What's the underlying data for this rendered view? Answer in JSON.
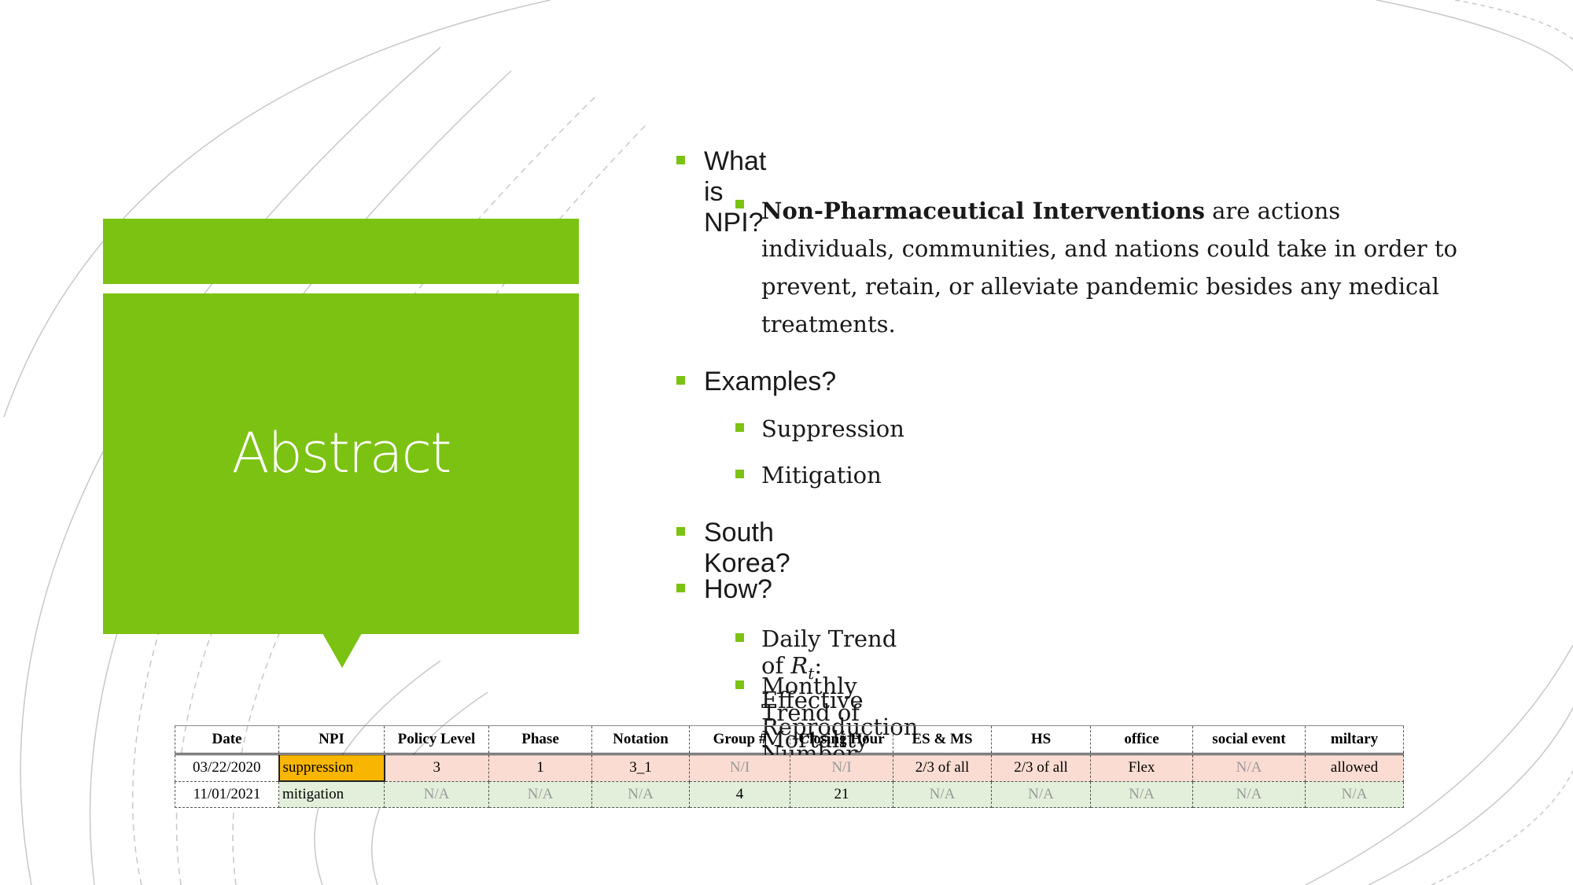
{
  "slide": {
    "title": "Abstract",
    "accent_color": "#7cc212"
  },
  "bullets": {
    "q1": "What is NPI?",
    "q1_def_bold": "Non-Pharmaceutical Interventions",
    "q1_def_rest": " are actions individuals, communities, and nations could take in order to prevent, retain, or alleviate pandemic besides any medical treatments.",
    "q2": "Examples?",
    "q2_items": [
      "Suppression",
      "Mitigation"
    ],
    "q3": "South Korea?",
    "q4": "How?",
    "q4_item1_prefix": "Daily Trend of ",
    "q4_item1_math_base": "R",
    "q4_item1_math_sub": "t",
    "q4_item1_suffix": ": Effective Reproduction Number",
    "q4_item2": "Monthly Trend of Mortality"
  },
  "table": {
    "headers": [
      "Date",
      "NPI",
      "Policy Level",
      "Phase",
      "Notation",
      "Group #",
      "Closing Hour",
      "ES & MS",
      "HS",
      "office",
      "social event",
      "miltary"
    ],
    "rows": [
      [
        "03/22/2020",
        "suppression",
        "3",
        "1",
        "3_1",
        "N/I",
        "N/I",
        "2/3 of all",
        "2/3 of all",
        "Flex",
        "N/A",
        "allowed"
      ],
      [
        "11/01/2021",
        "mitigation",
        "N/A",
        "N/A",
        "N/A",
        "4",
        "21",
        "N/A",
        "N/A",
        "N/A",
        "N/A",
        "N/A"
      ]
    ]
  }
}
